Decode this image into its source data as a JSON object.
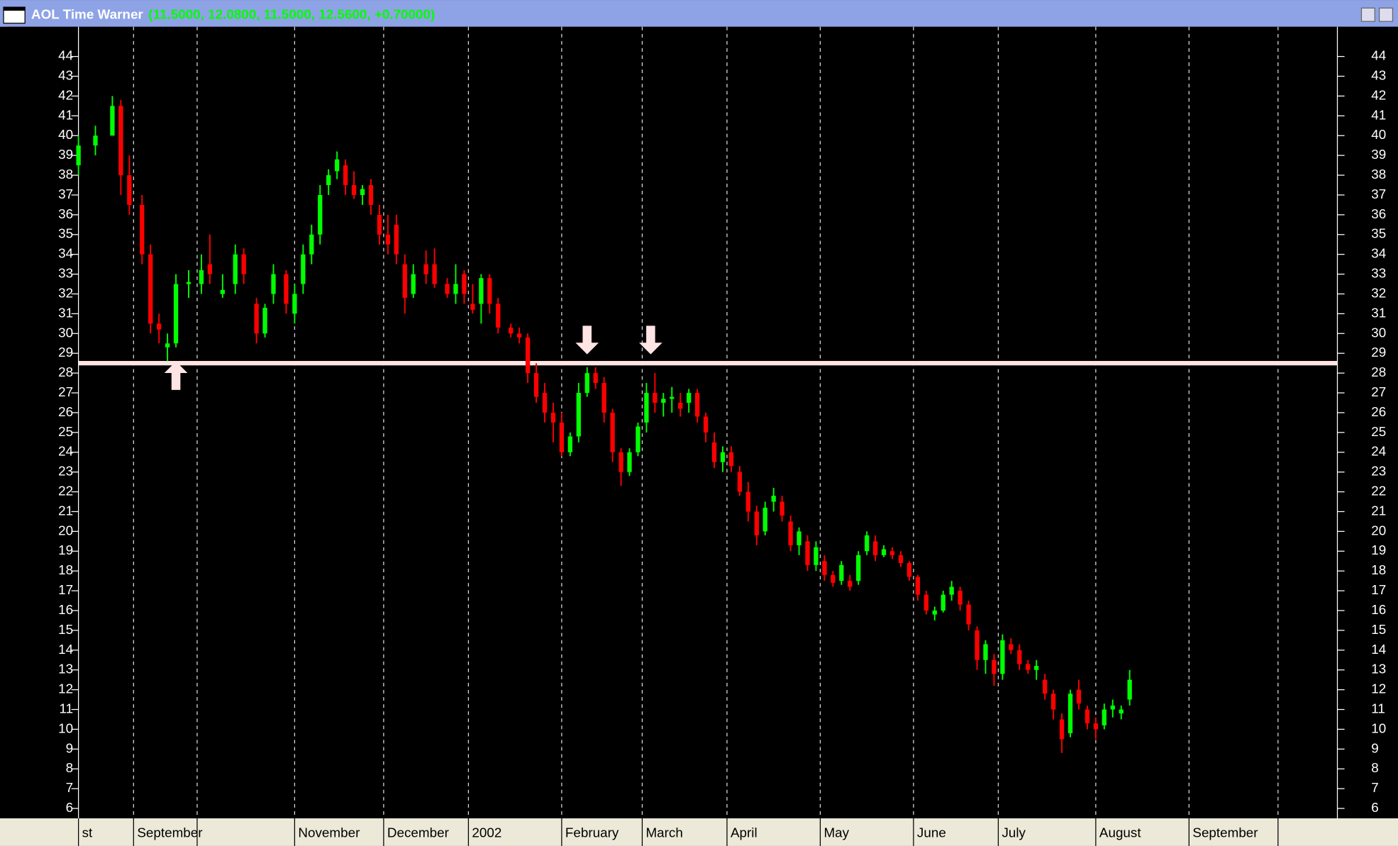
{
  "chart_data": {
    "type": "candlestick",
    "title": "AOL Time Warner",
    "subtitle": "(11.5000, 12.0800, 11.5000, 12.5600, +0.70000)",
    "up_color": "#00ff00",
    "down_color": "#ff0000",
    "level_color": "#ffe4e4",
    "level": 28.5,
    "xlim": [
      0,
      297
    ],
    "xticks": [
      {
        "value": 0,
        "label": "st"
      },
      {
        "value": 13,
        "label": "September"
      },
      {
        "value": 28,
        "label": null
      },
      {
        "value": 51,
        "label": "November"
      },
      {
        "value": 72,
        "label": "December"
      },
      {
        "value": 92,
        "label": "2002"
      },
      {
        "value": 114,
        "label": "February"
      },
      {
        "value": 133,
        "label": "March"
      },
      {
        "value": 153,
        "label": "April"
      },
      {
        "value": 175,
        "label": "May"
      },
      {
        "value": 197,
        "label": "June"
      },
      {
        "value": 217,
        "label": "July"
      },
      {
        "value": 240,
        "label": "August"
      },
      {
        "value": 262,
        "label": "September"
      },
      {
        "value": 283,
        "label": null
      }
    ],
    "ylim": [
      5.5,
      45.5
    ],
    "yticks": [
      6,
      7,
      8,
      9,
      10,
      11,
      12,
      13,
      14,
      15,
      16,
      17,
      18,
      19,
      20,
      21,
      22,
      23,
      24,
      25,
      26,
      27,
      28,
      29,
      30,
      31,
      32,
      33,
      34,
      35,
      36,
      37,
      38,
      39,
      40,
      41,
      42,
      43,
      44
    ],
    "x": [
      0,
      4,
      8,
      10,
      12,
      15,
      17,
      19,
      21,
      23,
      26,
      29,
      31,
      34,
      37,
      39,
      42,
      44,
      46,
      49,
      51,
      53,
      55,
      57,
      59,
      61,
      63,
      65,
      67,
      69,
      71,
      73,
      75,
      77,
      79,
      82,
      84,
      87,
      89,
      91,
      93,
      95,
      97,
      99,
      102,
      104,
      106,
      108,
      110,
      112,
      114,
      116,
      118,
      120,
      122,
      124,
      126,
      128,
      130,
      132,
      134,
      136,
      138,
      140,
      142,
      144,
      146,
      148,
      150,
      152,
      154,
      156,
      158,
      160,
      162,
      164,
      166,
      168,
      170,
      172,
      174,
      176,
      178,
      180,
      182,
      184,
      186,
      188,
      190,
      192,
      194,
      196,
      198,
      200,
      202,
      204,
      206,
      208,
      210,
      212,
      214,
      216,
      218,
      220,
      222,
      224,
      226,
      228,
      230,
      232,
      234,
      236,
      238,
      240,
      242,
      244,
      246,
      248
    ],
    "open": [
      38.5,
      39.5,
      40,
      41.5,
      38,
      36.5,
      34,
      30.5,
      29.3,
      29.5,
      32.5,
      32.5,
      33.5,
      32,
      32.5,
      34,
      31.5,
      30,
      32,
      33,
      31,
      32.5,
      34,
      35,
      37.5,
      38.2,
      38.5,
      37.5,
      37,
      37.5,
      36,
      35,
      35.5,
      33.5,
      32,
      33.5,
      33.5,
      32.5,
      32,
      33,
      31.5,
      31.5,
      32.8,
      31.5,
      30.3,
      30,
      29.8,
      28,
      27,
      26,
      25.5,
      24,
      24.8,
      27,
      28,
      27.5,
      26,
      24,
      23,
      24,
      25.5,
      27,
      26.5,
      26.7,
      26.5,
      26.5,
      27,
      25.8,
      24.5,
      23.5,
      24,
      23,
      22,
      21,
      20,
      21.5,
      21.5,
      20.5,
      19.3,
      19.5,
      18.3,
      18.5,
      17.8,
      17.5,
      17.5,
      17.5,
      19,
      19.5,
      18.8,
      19,
      18.8,
      18.4,
      17.7,
      16.8,
      15.8,
      16,
      16.8,
      17,
      16.3,
      15,
      13.5,
      13.5,
      12.8,
      14.3,
      14,
      13.3,
      13,
      12.5,
      11.8,
      10.5,
      9.8,
      12,
      11,
      10.3,
      10.2,
      11,
      10.8,
      11.5
    ],
    "high": [
      40,
      40.5,
      42,
      41.8,
      39,
      37,
      34.5,
      31,
      30,
      33,
      33.2,
      34,
      35,
      33,
      34.5,
      34.3,
      31.8,
      31.5,
      33.5,
      33.2,
      32.5,
      34.5,
      35.5,
      37.5,
      38.3,
      39.2,
      38.8,
      38.2,
      37.5,
      37.8,
      36.5,
      36,
      36,
      34,
      33.5,
      34.2,
      34.3,
      32.8,
      33.5,
      33.2,
      32.5,
      33,
      33,
      31.8,
      30.5,
      30.3,
      30,
      28.5,
      27.5,
      26.5,
      26,
      25,
      27.5,
      28.3,
      28.3,
      27.8,
      26.2,
      24.2,
      24.2,
      25.5,
      27.5,
      28,
      27,
      27.3,
      27,
      27.2,
      27.2,
      26,
      25,
      24.3,
      24.3,
      23.3,
      22.5,
      21.3,
      21.5,
      22.2,
      21.8,
      20.8,
      20.2,
      19.8,
      19.5,
      18.8,
      18,
      18.5,
      17.8,
      19,
      20,
      19.8,
      19.3,
      19.2,
      19,
      18.5,
      17.8,
      17,
      16.2,
      17,
      17.5,
      17.2,
      16.5,
      15.2,
      14.5,
      13.8,
      14.8,
      14.6,
      14.3,
      13.5,
      13.5,
      12.8,
      12,
      10.8,
      12,
      12.5,
      11.2,
      10.6,
      11.3,
      11.5,
      11.2,
      13
    ],
    "low": [
      38,
      39,
      40,
      37,
      36,
      33.5,
      30,
      29.5,
      28.6,
      29.3,
      31.8,
      32,
      32.5,
      31.8,
      32,
      32.5,
      29.5,
      29.8,
      31.5,
      31,
      30.5,
      32,
      33.5,
      34.5,
      37,
      37.8,
      37,
      36.8,
      36.5,
      36,
      34.5,
      34,
      33.5,
      31,
      31.8,
      32.5,
      32.3,
      31.8,
      31.5,
      31.5,
      31,
      30.5,
      31,
      30,
      29.8,
      29.5,
      27.5,
      26.5,
      25.5,
      24.5,
      23.8,
      23.8,
      24.5,
      26.8,
      27.2,
      25.5,
      23.5,
      22.3,
      22.8,
      23.8,
      25,
      26,
      25.8,
      26,
      25.8,
      26,
      25.5,
      24.5,
      23.2,
      23,
      23,
      21.8,
      20.5,
      19.3,
      19.8,
      21,
      20.5,
      19,
      18.8,
      18,
      18,
      17.5,
      17.2,
      17.3,
      17,
      17.3,
      18.8,
      18.5,
      18.7,
      18.6,
      18.2,
      17.5,
      16.5,
      15.8,
      15.5,
      15.9,
      16.5,
      16,
      15,
      13,
      12.8,
      12.2,
      12.5,
      13.8,
      13,
      12.8,
      12.5,
      11.5,
      10.5,
      8.8,
      9.6,
      11,
      10,
      9.5,
      10,
      10.6,
      10.5,
      11.2
    ],
    "close": [
      39.5,
      40,
      41.5,
      38,
      36.5,
      34,
      30.5,
      30.2,
      29.5,
      32.5,
      32.6,
      33.2,
      33,
      32.2,
      34,
      33,
      30,
      31.3,
      33,
      31.5,
      32,
      34,
      35,
      37,
      38,
      38.8,
      37.5,
      37,
      37.3,
      36.5,
      35,
      34.5,
      34,
      31.8,
      33,
      33,
      32.5,
      32,
      32.5,
      32,
      31.2,
      32.8,
      31.5,
      30.3,
      30,
      29.8,
      28,
      26.8,
      26,
      25.5,
      24,
      24.8,
      27,
      28,
      27.5,
      26,
      24,
      23,
      24,
      25.3,
      27,
      26.5,
      26.7,
      26.8,
      26.2,
      27,
      25.8,
      25,
      23.5,
      24,
      23.3,
      22,
      21,
      19.8,
      21.2,
      21.8,
      20.8,
      19.3,
      20,
      18.3,
      19.2,
      17.8,
      17.4,
      18.3,
      17.2,
      18.8,
      19.8,
      18.8,
      19.1,
      18.8,
      18.4,
      17.7,
      16.8,
      16,
      16,
      16.8,
      17.2,
      16.3,
      15.3,
      13.5,
      14.3,
      12.8,
      14.5,
      14,
      13.3,
      13,
      13.2,
      11.8,
      11,
      9.5,
      11.8,
      11.3,
      10.3,
      10,
      11,
      11.2,
      11,
      12.5
    ]
  }
}
